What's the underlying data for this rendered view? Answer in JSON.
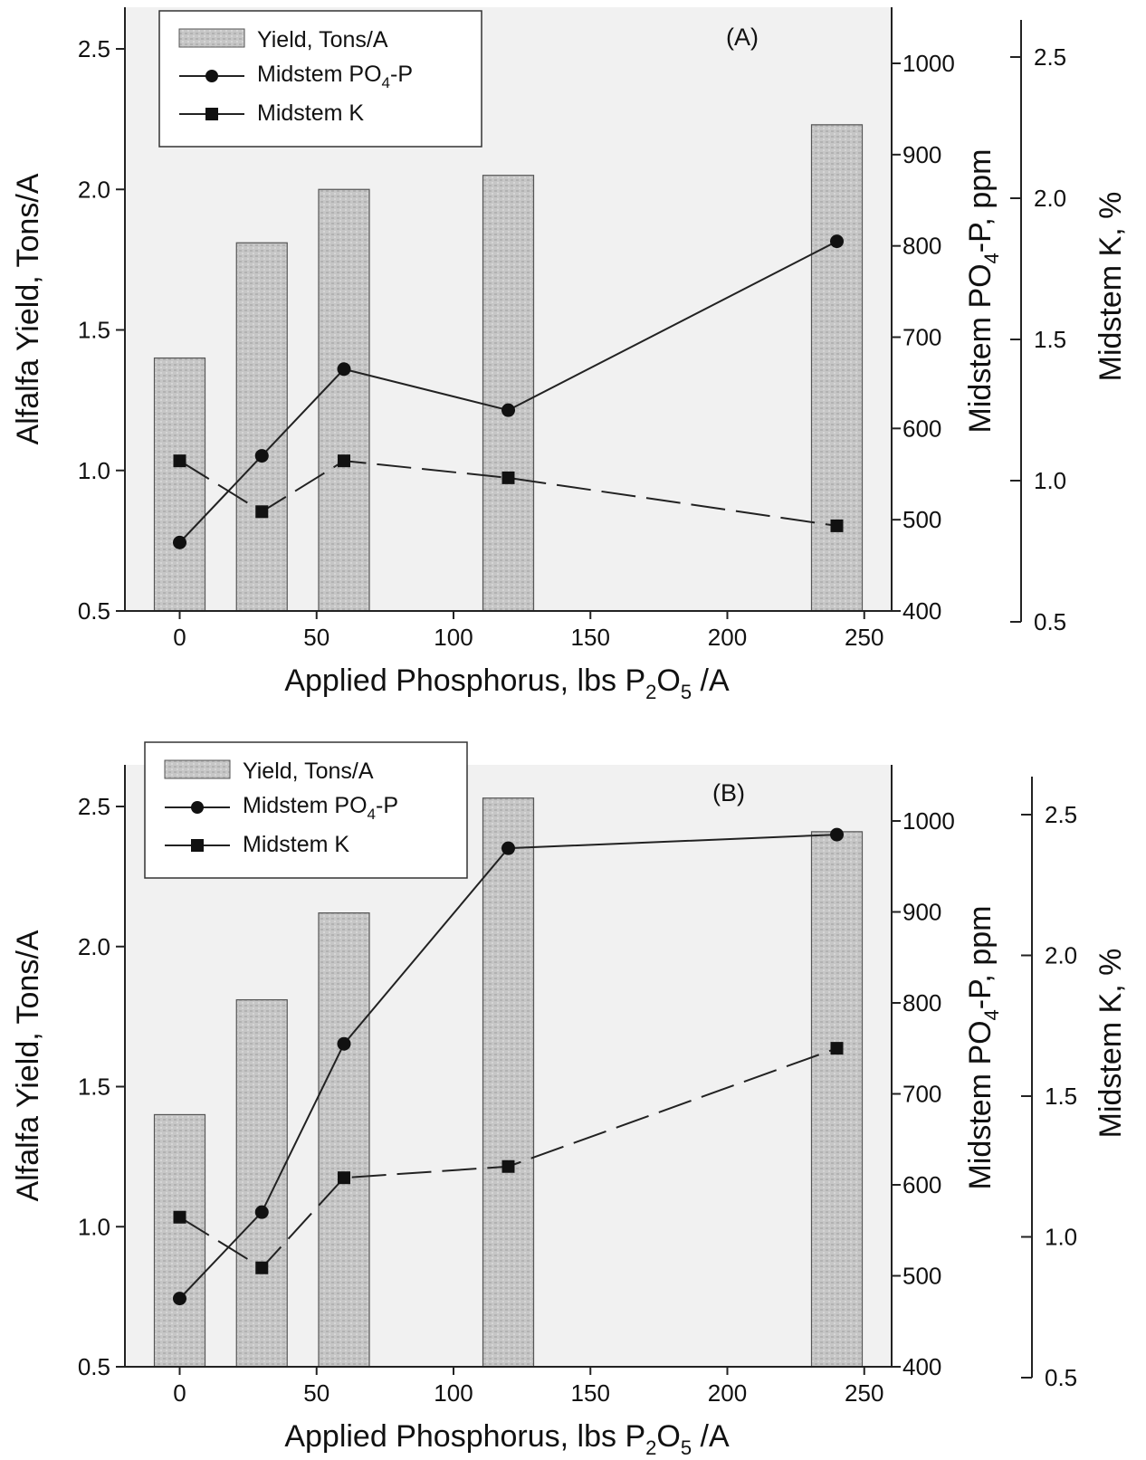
{
  "chart_data": [
    {
      "type": "bar",
      "panel_label": "(A)",
      "x_values": [
        0,
        30,
        60,
        120,
        240
      ],
      "xlim": [
        -20,
        260
      ],
      "x_ticks": [
        0,
        50,
        100,
        150,
        200,
        250
      ],
      "xlabel": {
        "prefix": "Applied Phosphorus, lbs P",
        "sub1": "2",
        "mid": "O",
        "sub2": "5",
        "suffix": " /A"
      },
      "y_left": {
        "label": "Alfalfa Yield, Tons/A",
        "lim": [
          0.5,
          2.5
        ],
        "ticks": [
          "0.5",
          "1.0",
          "1.5",
          "2.0",
          "2.5"
        ]
      },
      "y_right1": {
        "label": {
          "prefix": "Midstem PO",
          "sub": "4",
          "suffix": "-P, ppm"
        },
        "lim": [
          400,
          1000
        ],
        "ticks": [
          "400",
          "500",
          "600",
          "700",
          "800",
          "900",
          "1000"
        ]
      },
      "y_right2": {
        "label": "Midstem K, %",
        "lim": [
          0.5,
          2.5
        ],
        "ticks": [
          "0.5",
          "1.0",
          "1.5",
          "2.0",
          "2.5"
        ]
      },
      "legend": {
        "position": "top-left",
        "yield": "Yield, Tons/A",
        "po4": {
          "prefix": "Midstem PO",
          "sub": "4",
          "suffix": "-P"
        },
        "k": "Midstem K"
      },
      "series": [
        {
          "name": "Yield, Tons/A",
          "axis": "left",
          "kind": "bar",
          "values": [
            1.4,
            1.81,
            2.0,
            2.05,
            2.23
          ]
        },
        {
          "name": "Midstem PO4-P",
          "axis": "right1",
          "kind": "line",
          "marker": "circle",
          "values": [
            475,
            570,
            665,
            620,
            805
          ]
        },
        {
          "name": "Midstem K",
          "axis": "right2",
          "kind": "line",
          "marker": "square",
          "dash": true,
          "values": [
            1.07,
            0.89,
            1.07,
            1.01,
            0.84
          ]
        }
      ]
    },
    {
      "type": "bar",
      "panel_label": "(B)",
      "x_values": [
        0,
        30,
        60,
        120,
        240
      ],
      "xlim": [
        -20,
        260
      ],
      "x_ticks": [
        0,
        50,
        100,
        150,
        200,
        250
      ],
      "xlabel": {
        "prefix": "Applied Phosphorus, lbs P",
        "sub1": "2",
        "mid": "O",
        "sub2": "5",
        "suffix": " /A"
      },
      "y_left": {
        "label": "Alfalfa Yield, Tons/A",
        "lim": [
          0.5,
          2.5
        ],
        "ticks": [
          "0.5",
          "1.0",
          "1.5",
          "2.0",
          "2.5"
        ]
      },
      "y_right1": {
        "label": {
          "prefix": "Midstem PO",
          "sub": "4",
          "suffix": "-P, ppm"
        },
        "lim": [
          400,
          1000
        ],
        "ticks": [
          "400",
          "500",
          "600",
          "700",
          "800",
          "900",
          "1000"
        ]
      },
      "y_right2": {
        "label": "Midstem K, %",
        "lim": [
          0.5,
          2.5
        ],
        "ticks": [
          "0.5",
          "1.0",
          "1.5",
          "2.0",
          "2.5"
        ]
      },
      "legend": {
        "position": "top-left",
        "yield": "Yield, Tons/A",
        "po4": {
          "prefix": "Midstem PO",
          "sub": "4",
          "suffix": "-P"
        },
        "k": "Midstem K"
      },
      "series": [
        {
          "name": "Yield, Tons/A",
          "axis": "left",
          "kind": "bar",
          "values": [
            1.4,
            1.81,
            2.12,
            2.53,
            2.41
          ]
        },
        {
          "name": "Midstem PO4-P",
          "axis": "right1",
          "kind": "line",
          "marker": "circle",
          "values": [
            475,
            570,
            755,
            970,
            985
          ]
        },
        {
          "name": "Midstem K",
          "axis": "right2",
          "kind": "line",
          "marker": "square",
          "dash": true,
          "values": [
            1.07,
            0.89,
            1.21,
            1.25,
            1.67
          ]
        }
      ]
    }
  ],
  "colors": {
    "bar_fill": "#c9c9c9",
    "bar_stroke": "#555555",
    "line": "#222222",
    "marker": "#111111",
    "plot_bg": "#f1f1f1"
  }
}
